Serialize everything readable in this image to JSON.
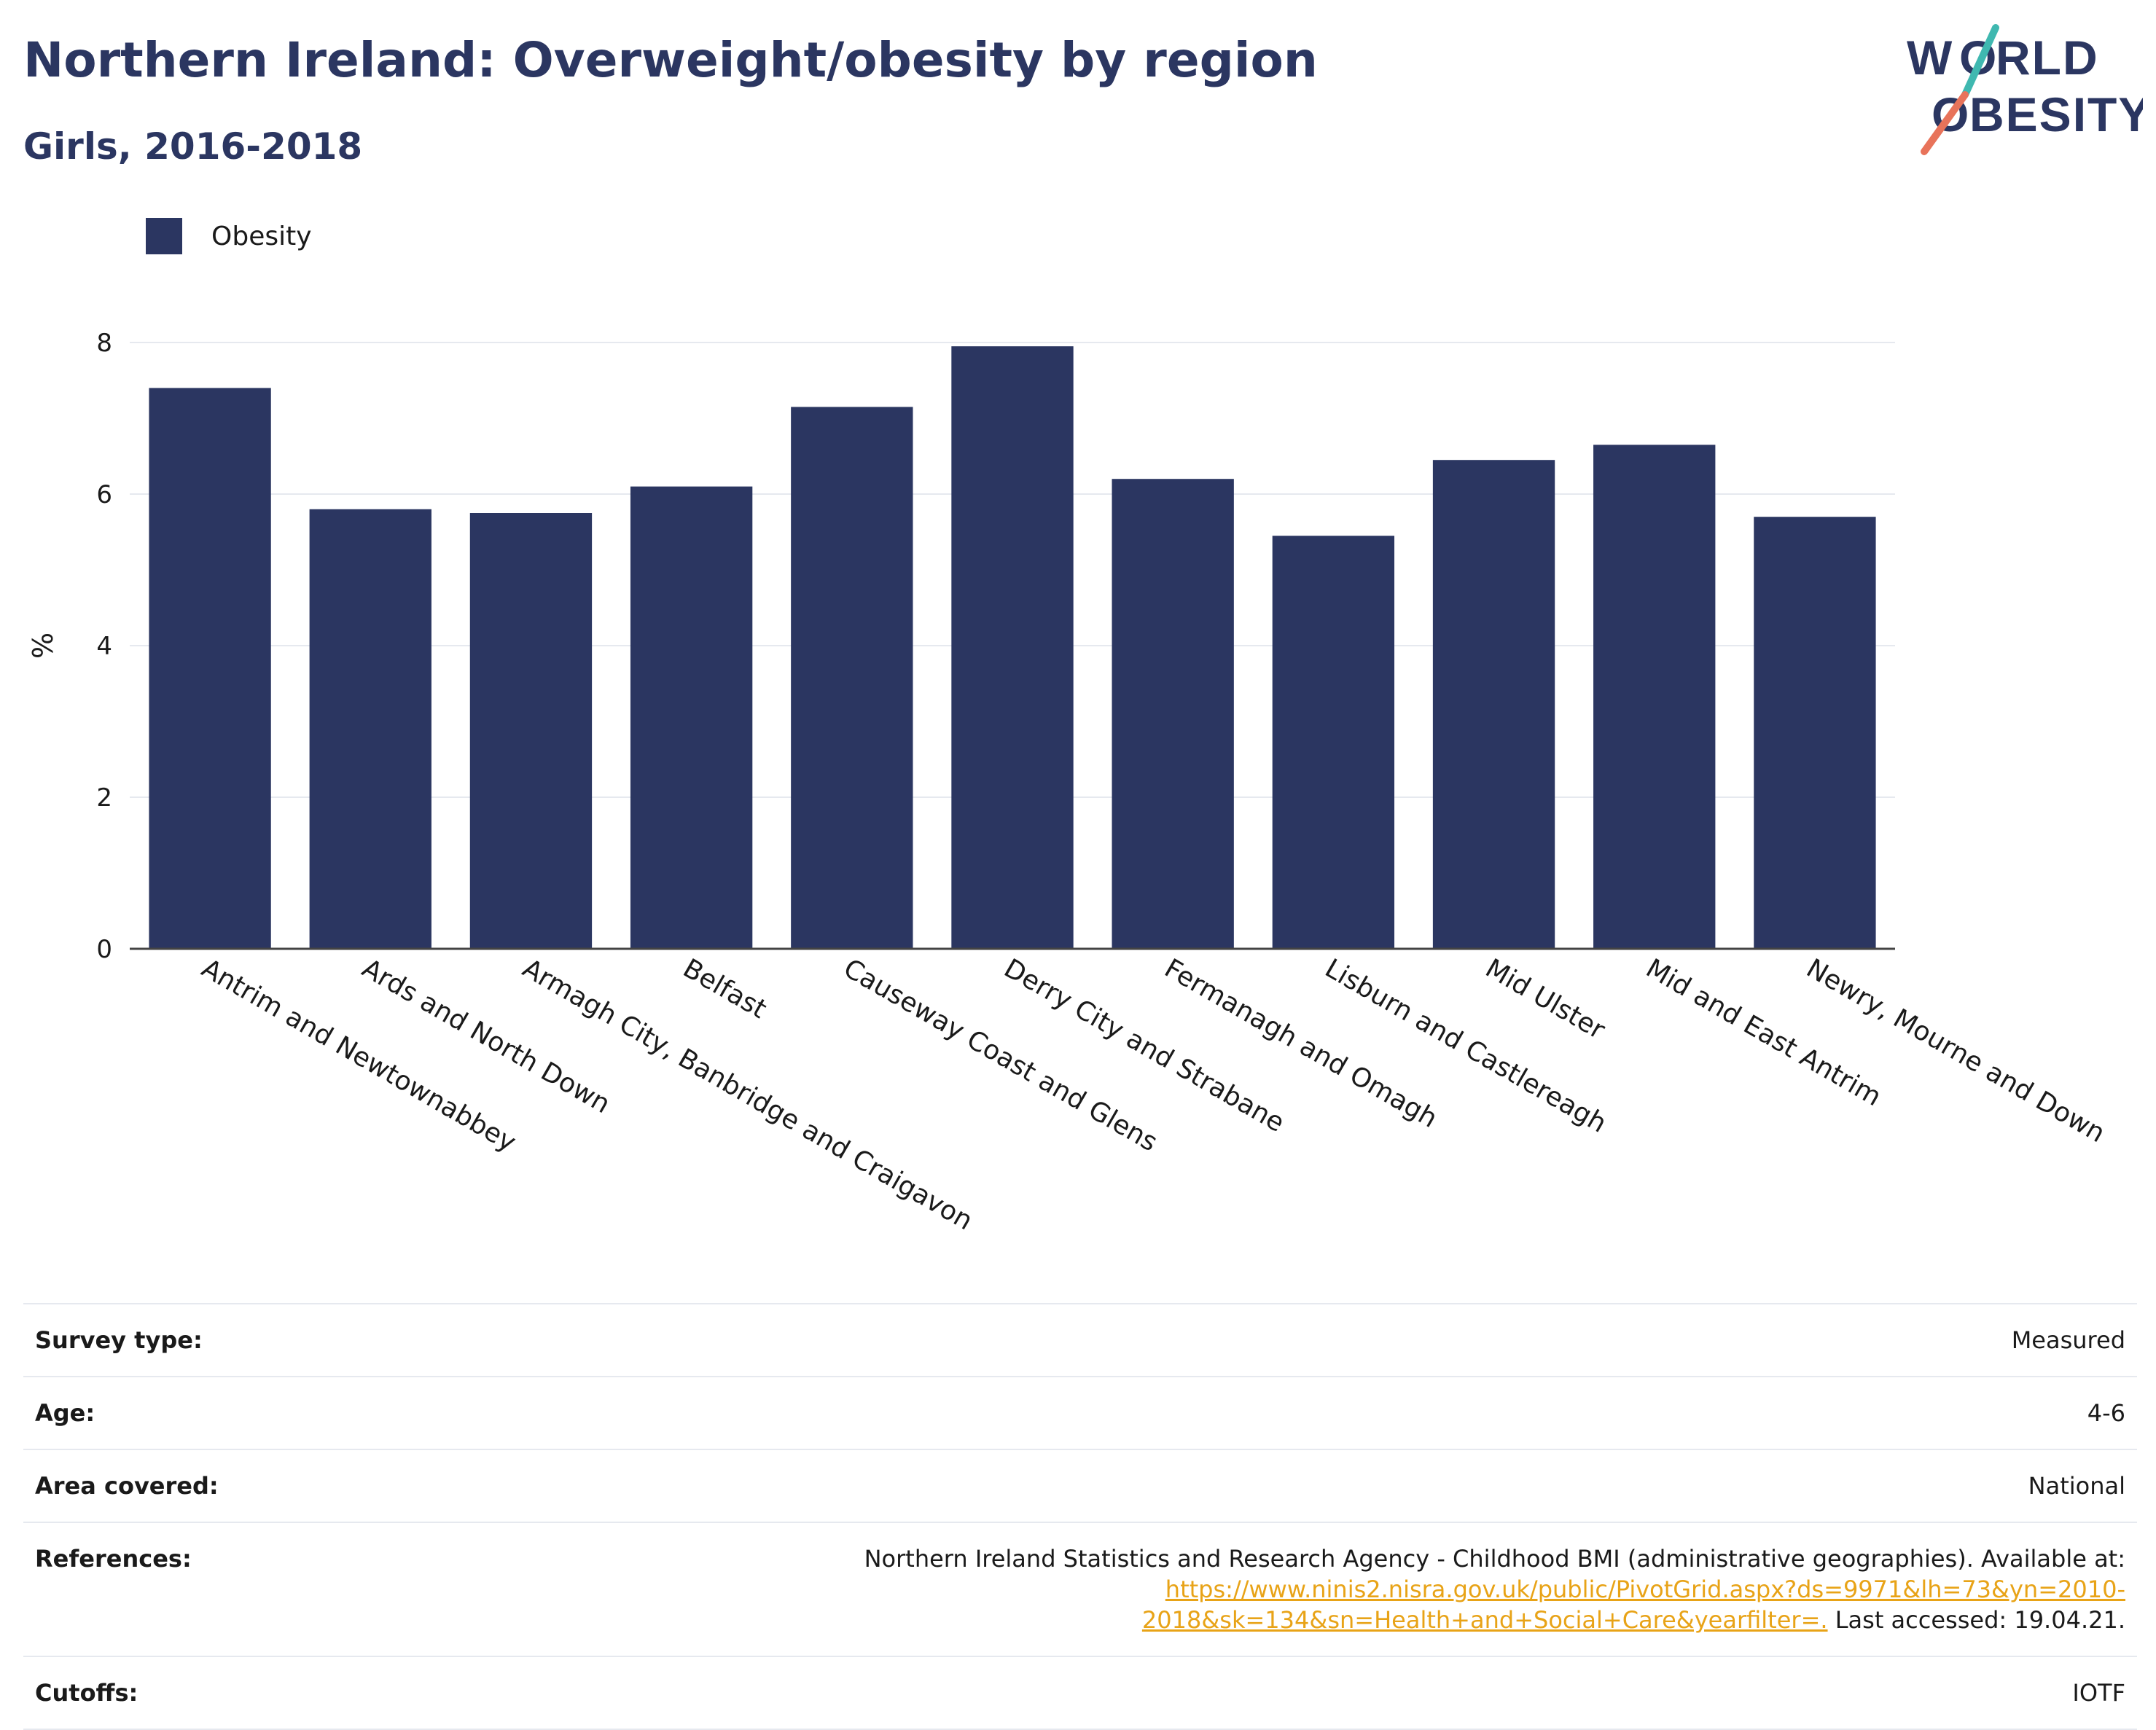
{
  "title": "Northern Ireland: Overweight/obesity by region",
  "subtitle": "Girls, 2016-2018",
  "logo": {
    "line1": "WORLD",
    "line2": "OBESITY"
  },
  "legend": {
    "label": "Obesity",
    "color": "#2b3661"
  },
  "chart_data": {
    "type": "bar",
    "categories": [
      "Antrim and Newtownabbey",
      "Ards and North Down",
      "Armagh City, Banbridge and Craigavon",
      "Belfast",
      "Causeway Coast and Glens",
      "Derry City and Strabane",
      "Fermanagh and Omagh",
      "Lisburn and Castlereagh",
      "Mid Ulster",
      "Mid and East Antrim",
      "Newry, Mourne and Down"
    ],
    "series": [
      {
        "name": "Obesity",
        "values": [
          7.4,
          5.8,
          5.75,
          6.1,
          7.15,
          7.95,
          6.2,
          5.45,
          6.45,
          6.65,
          5.7
        ]
      }
    ],
    "ylabel": "%",
    "xlabel": "",
    "ylim": [
      0,
      8
    ],
    "yticks": [
      0,
      2,
      4,
      6,
      8
    ],
    "grid": true,
    "legend_position": "top-left",
    "bar_color": "#2b3661"
  },
  "meta": {
    "survey_type": {
      "label": "Survey type:",
      "value": "Measured"
    },
    "age": {
      "label": "Age:",
      "value": "4-6"
    },
    "area": {
      "label": "Area covered:",
      "value": "National"
    },
    "references": {
      "label": "References:",
      "text": "Northern Ireland Statistics and Research Agency - Childhood BMI (administrative geographies). Available at:",
      "link": "https://www.ninis2.nisra.gov.uk/public/PivotGrid.aspx?ds=9971&lh=73&yn=2010-2018&sk=134&sn=Health+and+Social+Care&yearfilter=.",
      "suffix": "Last accessed: 19.04.21."
    },
    "cutoffs": {
      "label": "Cutoffs:",
      "value": "IOTF"
    }
  },
  "colors": {
    "brand": "#2b3661",
    "accent_teal": "#3fb8b0",
    "accent_coral": "#e8735a",
    "link": "#e8a317"
  }
}
